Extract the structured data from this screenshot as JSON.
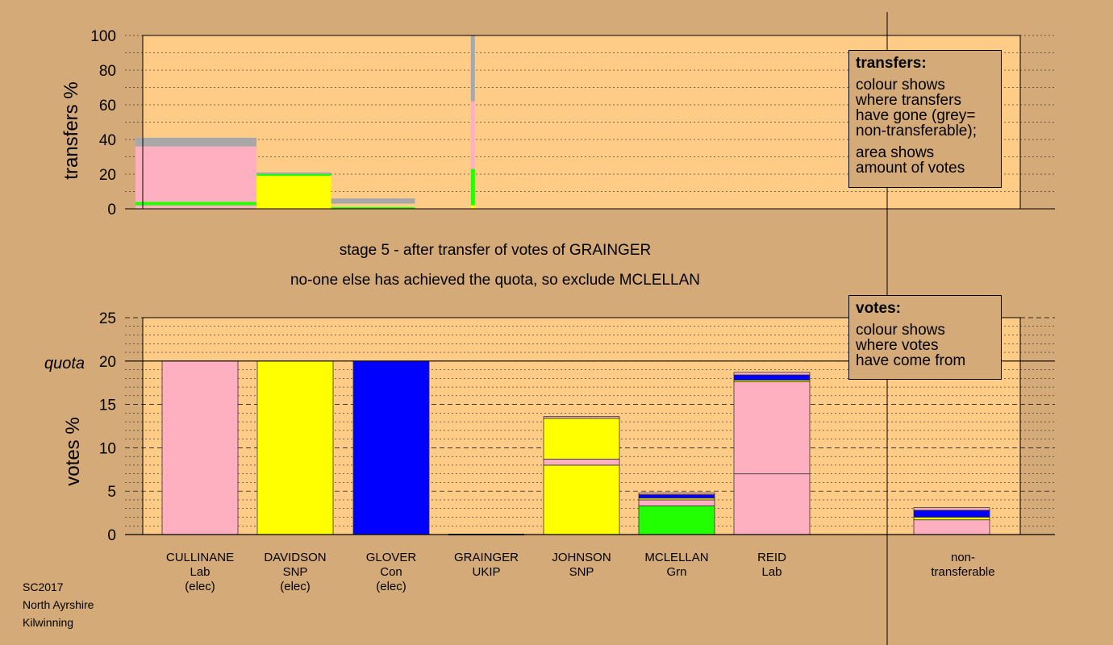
{
  "titles": {
    "stage": "stage 5 - after transfer of votes of GRAINGER",
    "action": "no-one else has achieved the quota, so exclude MCLELLAN"
  },
  "footer": {
    "line1": "SC2017",
    "line2": "North Ayrshire",
    "line3": "Kilwinning"
  },
  "legend_transfers": {
    "title": "transfers:",
    "lines": [
      "colour shows",
      "where transfers",
      "have gone (grey=",
      "non-transferable);",
      "",
      "area shows",
      "amount of votes"
    ]
  },
  "legend_votes": {
    "title": "votes:",
    "lines": [
      "colour shows",
      "where votes",
      "have come from"
    ]
  },
  "colors": {
    "Lab": "#ffb0c0",
    "SNP": "#ffff00",
    "Con": "#0000ff",
    "Grn": "#22ff00",
    "UKIP": "#a020f0",
    "nontransferable": "#a8a8a8",
    "plot_bg": "#ffcc88",
    "page_bg": "#d4aa78"
  },
  "candidates": [
    {
      "name": "CULLINANE",
      "party": "Lab",
      "status": "(elec)"
    },
    {
      "name": "DAVIDSON",
      "party": "SNP",
      "status": "(elec)"
    },
    {
      "name": "GLOVER",
      "party": "Con",
      "status": "(elec)"
    },
    {
      "name": "GRAINGER",
      "party": "UKIP",
      "status": ""
    },
    {
      "name": "JOHNSON",
      "party": "SNP",
      "status": ""
    },
    {
      "name": "MCLELLAN",
      "party": "Grn",
      "status": ""
    },
    {
      "name": "REID",
      "party": "Lab",
      "status": ""
    },
    {
      "name": "non-",
      "party": "transferable",
      "status": ""
    }
  ],
  "chart_data": [
    {
      "type": "bar",
      "name": "transfers",
      "ylabel": "transfers %",
      "ylim": [
        0,
        100
      ],
      "yticks": [
        0,
        20,
        40,
        60,
        80,
        100
      ],
      "bars": [
        {
          "x_start": 0.0,
          "x_end": 13.0,
          "segments": [
            {
              "color": "Lab",
              "y0": 0,
              "y1": 2
            },
            {
              "color": "Grn",
              "y0": 2,
              "y1": 4
            },
            {
              "color": "Lab",
              "y0": 4,
              "y1": 36
            },
            {
              "color": "nontransferable",
              "y0": 36,
              "y1": 41
            }
          ]
        },
        {
          "x_start": 13.0,
          "x_end": 21.0,
          "segments": [
            {
              "color": "SNP",
              "y0": 0,
              "y1": 19
            },
            {
              "color": "Grn",
              "y0": 19,
              "y1": 20
            },
            {
              "color": "nontransferable",
              "y0": 20,
              "y1": 21
            }
          ]
        },
        {
          "x_start": 21.0,
          "x_end": 30.0,
          "segments": [
            {
              "color": "Grn",
              "y0": 0,
              "y1": 1
            },
            {
              "color": "nontransferable",
              "y0": 3,
              "y1": 6
            }
          ]
        },
        {
          "x_start": 36.0,
          "x_end": 36.4,
          "segments": [
            {
              "color": "SNP",
              "y0": 0,
              "y1": 2
            },
            {
              "color": "Grn",
              "y0": 2,
              "y1": 23
            },
            {
              "color": "Lab",
              "y0": 23,
              "y1": 62
            },
            {
              "color": "nontransferable",
              "y0": 62,
              "y1": 100
            }
          ]
        }
      ]
    },
    {
      "type": "bar",
      "name": "votes",
      "ylabel": "votes %",
      "ylim": [
        0,
        25
      ],
      "yticks": [
        0,
        5,
        10,
        15,
        20,
        25
      ],
      "quota": 20,
      "quota_label": "quota",
      "categories": [
        "CULLINANE",
        "DAVIDSON",
        "GLOVER",
        "GRAINGER",
        "JOHNSON",
        "MCLELLAN",
        "REID",
        "non-transferable"
      ],
      "stacks": [
        [
          {
            "color": "Lab",
            "y0": 0,
            "y1": 20
          }
        ],
        [
          {
            "color": "SNP",
            "y0": 0,
            "y1": 20
          }
        ],
        [
          {
            "color": "Con",
            "y0": 0,
            "y1": 20
          }
        ],
        [],
        [
          {
            "color": "SNP",
            "y0": 0,
            "y1": 8
          },
          {
            "color": "Lab",
            "y0": 8,
            "y1": 8.7
          },
          {
            "color": "SNP",
            "y0": 8.7,
            "y1": 13.4
          },
          {
            "color": "Lab",
            "y0": 13.4,
            "y1": 13.6
          }
        ],
        [
          {
            "color": "Grn",
            "y0": 0,
            "y1": 3.3
          },
          {
            "color": "Lab",
            "y0": 3.3,
            "y1": 4.0
          },
          {
            "color": "SNP",
            "y0": 4.0,
            "y1": 4.2
          },
          {
            "color": "Con",
            "y0": 4.2,
            "y1": 4.6
          },
          {
            "color": "Lab",
            "y0": 4.6,
            "y1": 4.8
          }
        ],
        [
          {
            "color": "Lab",
            "y0": 0,
            "y1": 7
          },
          {
            "color": "Lab",
            "y0": 7,
            "y1": 17.6
          },
          {
            "color": "SNP",
            "y0": 17.6,
            "y1": 17.8
          },
          {
            "color": "Con",
            "y0": 17.8,
            "y1": 18.4
          },
          {
            "color": "Lab",
            "y0": 18.4,
            "y1": 18.7
          }
        ],
        [
          {
            "color": "Lab",
            "y0": 0,
            "y1": 1.7
          },
          {
            "color": "SNP",
            "y0": 1.7,
            "y1": 2.0
          },
          {
            "color": "Con",
            "y0": 2.0,
            "y1": 2.8
          },
          {
            "color": "Lab",
            "y0": 2.8,
            "y1": 3.1
          }
        ]
      ]
    }
  ]
}
